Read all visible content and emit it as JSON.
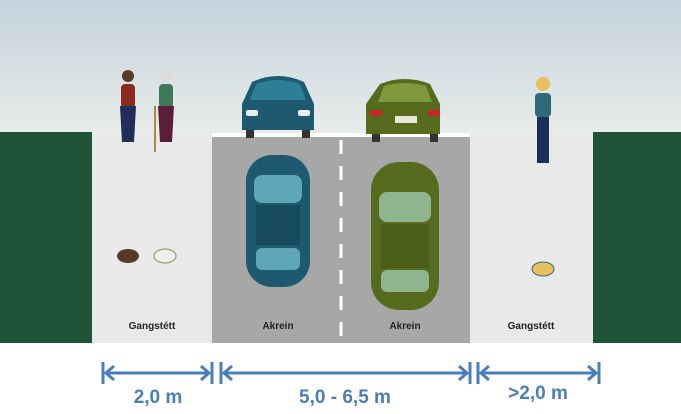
{
  "zones": [
    {
      "label": "Gangstétt"
    },
    {
      "label": "Akrein"
    },
    {
      "label": "Akrein"
    },
    {
      "label": "Gangstétt"
    }
  ],
  "dimensions": [
    {
      "label": "2,0 m"
    },
    {
      "label": "5,0 - 6,5 m"
    },
    {
      "label": ">2,0 m"
    }
  ]
}
